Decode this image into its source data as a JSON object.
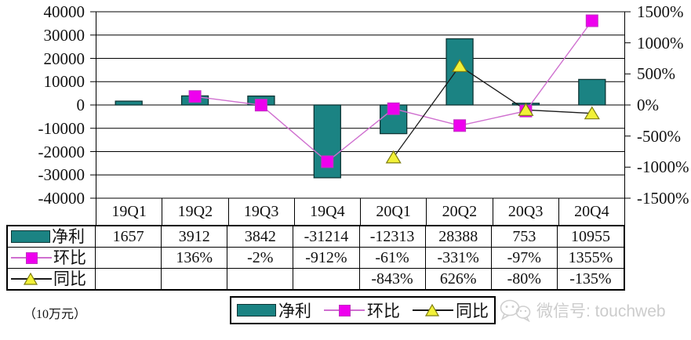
{
  "chart_data": {
    "type": "bar+line",
    "categories": [
      "19Q1",
      "19Q2",
      "19Q3",
      "19Q4",
      "20Q1",
      "20Q2",
      "20Q3",
      "20Q4"
    ],
    "series": [
      {
        "name": "净利",
        "type": "bar",
        "axis": "left",
        "values": [
          1657,
          3912,
          3842,
          -31214,
          -12313,
          28388,
          753,
          10955
        ]
      },
      {
        "name": "环比",
        "type": "line",
        "axis": "right",
        "marker": "square",
        "unit": "%",
        "values": [
          null,
          136,
          -2,
          -912,
          -61,
          -331,
          -97,
          1355
        ]
      },
      {
        "name": "同比",
        "type": "line",
        "axis": "right",
        "marker": "triangle",
        "unit": "%",
        "values": [
          null,
          null,
          null,
          null,
          -843,
          626,
          -80,
          -135
        ]
      }
    ],
    "left_axis": {
      "min": -40000,
      "max": 40000,
      "step": 10000
    },
    "right_axis": {
      "min": -1500,
      "max": 1500,
      "step": 500,
      "suffix": "%"
    },
    "grid": "horizontal",
    "legend_position": "bottom"
  },
  "table": {
    "header": [
      "19Q1",
      "19Q2",
      "19Q3",
      "19Q4",
      "20Q1",
      "20Q2",
      "20Q3",
      "20Q4"
    ],
    "rows": [
      {
        "label": "净利",
        "marker": "bar",
        "cells": [
          "1657",
          "3912",
          "3842",
          "-31214",
          "-12313",
          "28388",
          "753",
          "10955"
        ]
      },
      {
        "label": "环比",
        "marker": "square",
        "cells": [
          "",
          "136%",
          "-2%",
          "-912%",
          "-61%",
          "-331%",
          "-97%",
          "1355%"
        ]
      },
      {
        "label": "同比",
        "marker": "triangle",
        "cells": [
          "",
          "",
          "",
          "",
          "-843%",
          "626%",
          "-80%",
          "-135%"
        ]
      }
    ]
  },
  "legend": {
    "items": [
      {
        "label": "净利",
        "marker": "bar"
      },
      {
        "label": "环比",
        "marker": "square"
      },
      {
        "label": "同比",
        "marker": "triangle"
      }
    ]
  },
  "footnote": "（10万元）",
  "watermark": {
    "text": "微信号: touchweb"
  },
  "colors": {
    "bar_fill": "#1b8383",
    "bar_stroke": "#0d3434",
    "qoq_line": "#cf6fcf",
    "qoq_marker": "#ee00ee",
    "qoq_marker_stroke": "#c032c0",
    "yoy_line": "#1a1a1a",
    "yoy_marker": "#f2f138",
    "yoy_marker_stroke": "#7c7c10",
    "grid": "#000000",
    "text": "#111111",
    "watermark": "#cccccc"
  }
}
